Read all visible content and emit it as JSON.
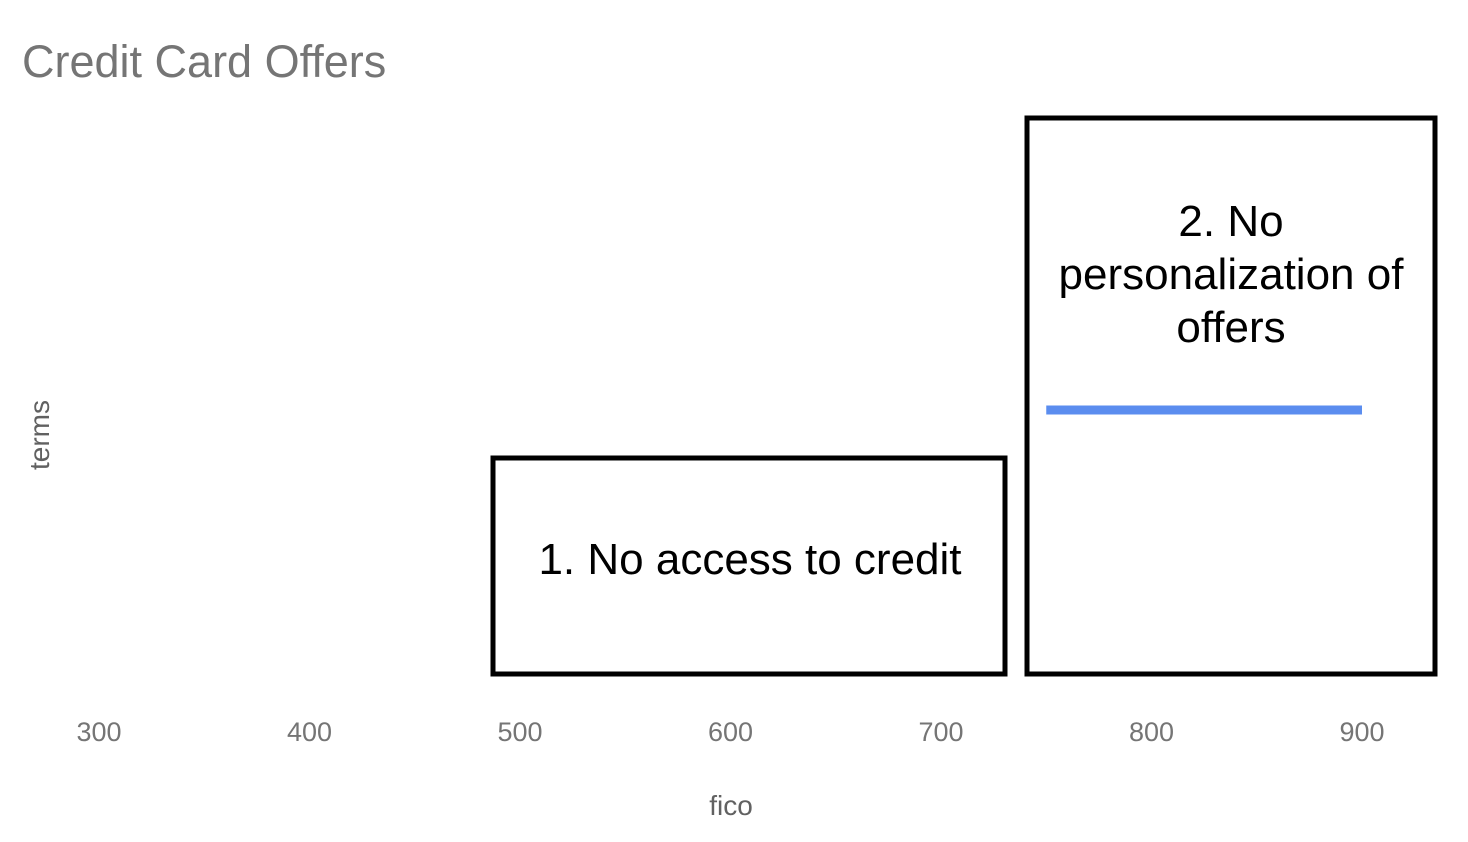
{
  "chart_data": {
    "type": "line",
    "title": "Credit Card Offers",
    "xlabel": "fico",
    "ylabel": "terms",
    "xlim": [
      300,
      900
    ],
    "x_ticks": [
      "300",
      "400",
      "500",
      "600",
      "700",
      "800",
      "900"
    ],
    "grid": false,
    "series": [
      {
        "x": [
          750,
          900
        ],
        "y": [
          1,
          1
        ],
        "color": "#5b8def"
      }
    ],
    "annotations": [
      {
        "text": "1. No access to credit",
        "x_range": [
          485,
          730
        ]
      },
      {
        "text": "2. No personalization of offers",
        "x_range": [
          740,
          935
        ]
      }
    ]
  },
  "colors": {
    "series": "#5b8def",
    "annotation_border": "#000000",
    "axis_text": "#757575"
  }
}
